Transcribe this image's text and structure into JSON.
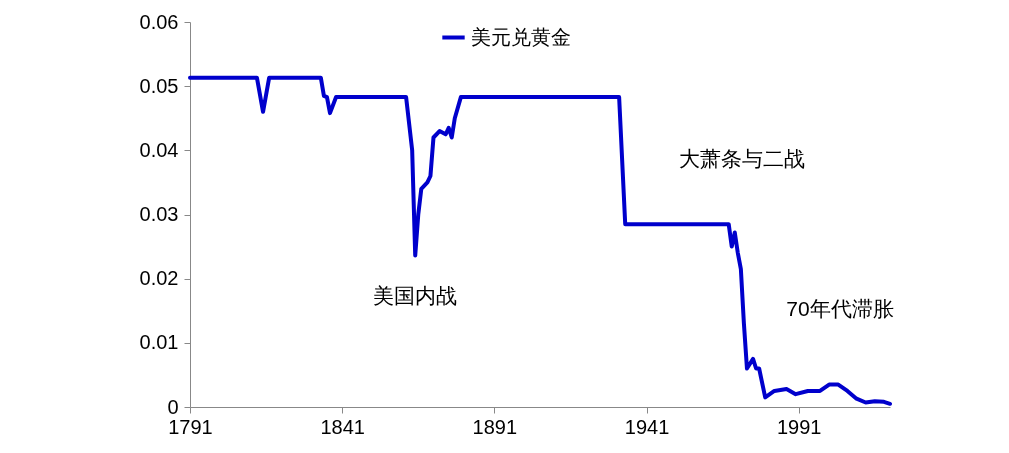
{
  "chart_data": {
    "type": "line",
    "xlim": [
      1791,
      2021
    ],
    "xticks": [
      1791,
      1841,
      1891,
      1941,
      1991
    ],
    "ylim": [
      0,
      0.06
    ],
    "yticks": [
      0,
      0.01,
      0.02,
      0.03,
      0.04,
      0.05,
      0.06
    ],
    "grid": false,
    "legend": "top",
    "marker": "none",
    "line_style": "solid",
    "x": [
      1791,
      1813,
      1815,
      1817,
      1834,
      1835,
      1836,
      1837,
      1839,
      1862,
      1864,
      1865,
      1866,
      1867,
      1869,
      1870,
      1871,
      1873,
      1875,
      1876,
      1877,
      1878,
      1880,
      1932,
      1934,
      1968,
      1969,
      1970,
      1971,
      1972,
      1973,
      1974,
      1976,
      1977,
      1978,
      1980,
      1983,
      1987,
      1990,
      1994,
      1998,
      2001,
      2004,
      2007,
      2010,
      2013,
      2016,
      2019,
      2021
    ],
    "series": [
      {
        "name": "美元兑黄金",
        "color": "#0000cc",
        "values": [
          0.0513,
          0.0513,
          0.046,
          0.0513,
          0.0513,
          0.0485,
          0.0483,
          0.0458,
          0.0483,
          0.0483,
          0.04,
          0.0236,
          0.03,
          0.034,
          0.035,
          0.036,
          0.042,
          0.043,
          0.0425,
          0.0435,
          0.042,
          0.045,
          0.0483,
          0.0483,
          0.0285,
          0.0285,
          0.025,
          0.0272,
          0.024,
          0.0215,
          0.013,
          0.006,
          0.0075,
          0.006,
          0.006,
          0.0015,
          0.0025,
          0.0028,
          0.002,
          0.0025,
          0.0025,
          0.0035,
          0.0035,
          0.0025,
          0.0013,
          0.0007,
          0.0009,
          0.0008,
          0.0005
        ]
      }
    ],
    "annotations": [
      "美国内战",
      "大萧条与二战",
      "70年代滞胀"
    ]
  }
}
